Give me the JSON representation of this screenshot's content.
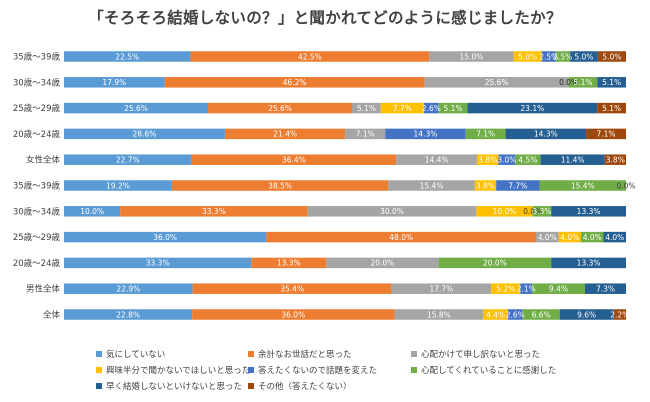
{
  "chart_data": {
    "type": "bar",
    "orientation": "horizontal",
    "stacked": "percent",
    "title": "「そろそろ結婚しないの？」と聞かれてどのように感じましたか？",
    "categories": [
      "35歳〜39歳",
      "30歳〜34歳",
      "25歳〜29歳",
      "20歳〜24歳",
      "女性全体",
      "35歳〜39歳",
      "30歳〜34歳",
      "25歳〜29歳",
      "20歳〜24歳",
      "男性全体",
      "全体"
    ],
    "xlim": [
      0,
      100
    ],
    "grid": false,
    "legend_position": "bottom",
    "series": [
      {
        "name": "気にしていない",
        "color": "#5B9BD5",
        "label_color": "#ffffff",
        "values": [
          22.5,
          17.9,
          25.6,
          28.6,
          22.7,
          19.2,
          10.0,
          36.0,
          33.3,
          22.9,
          22.8
        ]
      },
      {
        "name": "余計なお世話だと思った",
        "color": "#ED7D31",
        "label_color": "#ffffff",
        "values": [
          42.5,
          46.2,
          25.6,
          21.4,
          36.4,
          38.5,
          33.3,
          48.0,
          13.3,
          35.4,
          36.0
        ]
      },
      {
        "name": "心配かけて申し訳ないと思った",
        "color": "#A5A5A5",
        "label_color": "#ffffff",
        "values": [
          15.0,
          25.6,
          5.1,
          7.1,
          14.4,
          15.4,
          30.0,
          4.0,
          20.0,
          17.7,
          15.8
        ]
      },
      {
        "name": "興味半分で聞かないでほしいと思った",
        "color": "#FFC000",
        "label_color": "#ffffff",
        "values": [
          5.0,
          0.0,
          7.7,
          0.0,
          3.8,
          3.8,
          10.0,
          4.0,
          0.0,
          5.2,
          4.4
        ]
      },
      {
        "name": "答えたくないので話題を変えた",
        "color": "#4472C4",
        "label_color": "#ffffff",
        "values": [
          2.5,
          0.0,
          2.6,
          14.3,
          3.0,
          7.7,
          0.0,
          0.0,
          0.0,
          2.1,
          2.6
        ]
      },
      {
        "name": "心配してくれていることに感謝した",
        "color": "#70AD47",
        "label_color": "#ffffff",
        "values": [
          2.5,
          5.1,
          5.1,
          7.1,
          4.5,
          15.4,
          3.3,
          4.0,
          20.0,
          9.4,
          6.6
        ]
      },
      {
        "name": "早く結婚しないといけないと思った",
        "color": "#255E91",
        "label_color": "#ffffff",
        "values": [
          5.0,
          5.1,
          23.1,
          14.3,
          11.4,
          0.0,
          13.3,
          4.0,
          13.3,
          7.3,
          9.6
        ]
      },
      {
        "name": "その他（答えたくない）",
        "color": "#9E480E",
        "label_color": "#ffffff",
        "values": [
          5.0,
          0.0,
          5.1,
          7.1,
          3.8,
          0.0,
          0.0,
          0.0,
          0.0,
          0.0,
          2.2
        ]
      }
    ]
  }
}
